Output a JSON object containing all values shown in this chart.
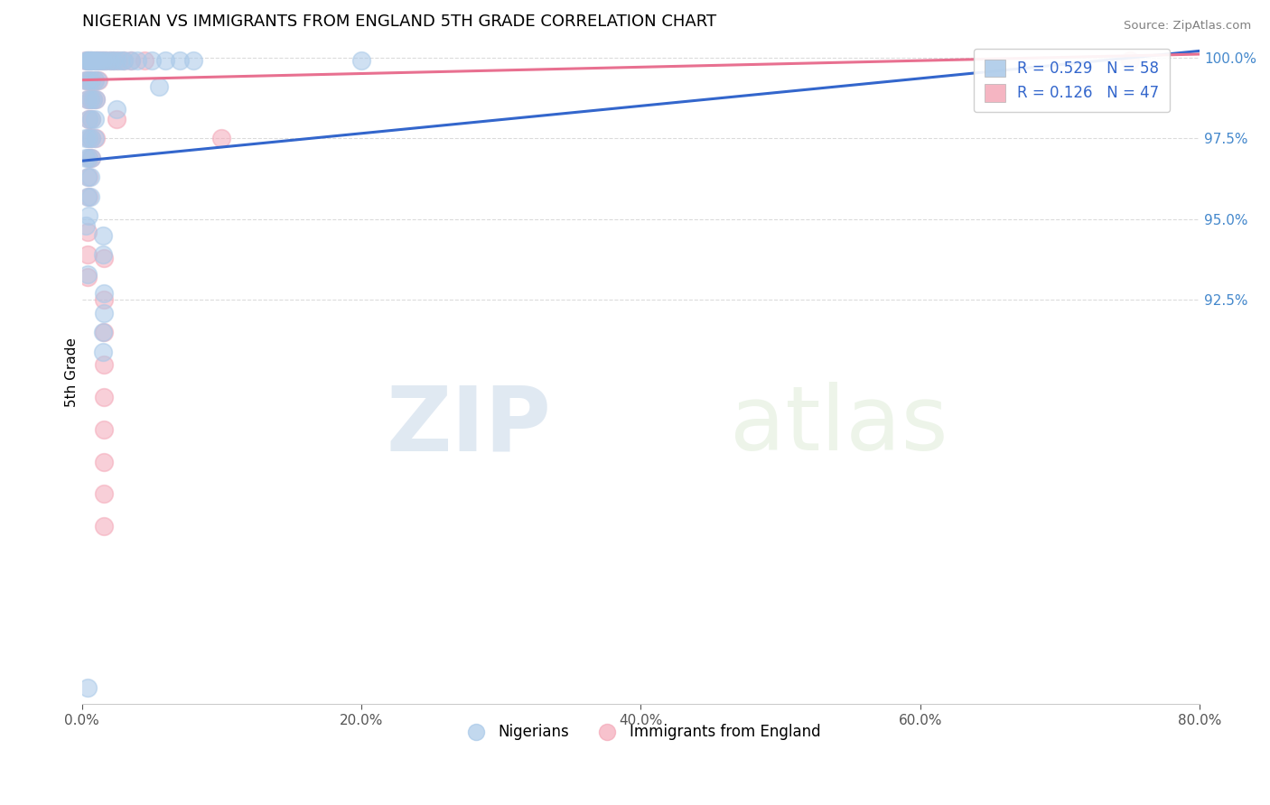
{
  "title": "NIGERIAN VS IMMIGRANTS FROM ENGLAND 5TH GRADE CORRELATION CHART",
  "source": "Source: ZipAtlas.com",
  "ylabel": "5th Grade",
  "xlim": [
    0.0,
    80.0
  ],
  "ylim": [
    80.0,
    100.5
  ],
  "xticks": [
    0.0,
    20.0,
    40.0,
    60.0,
    80.0
  ],
  "yticks": [
    92.5,
    95.0,
    97.5,
    100.0
  ],
  "title_fontsize": 13,
  "watermark_zip": "ZIP",
  "watermark_atlas": "atlas",
  "legend_r1": "R = 0.529   N = 58",
  "legend_r2": "R = 0.126   N = 47",
  "legend_label1": "Nigerians",
  "legend_label2": "Immigrants from England",
  "blue_color": "#a8c8e8",
  "pink_color": "#f4a8b8",
  "blue_line_color": "#3366cc",
  "pink_line_color": "#e87090",
  "blue_line_x": [
    0.0,
    80.0
  ],
  "blue_line_y": [
    96.8,
    100.2
  ],
  "pink_line_x": [
    0.0,
    80.0
  ],
  "pink_line_y": [
    99.3,
    100.1
  ],
  "blue_scatter": [
    [
      0.3,
      99.9
    ],
    [
      0.4,
      99.9
    ],
    [
      0.5,
      99.9
    ],
    [
      0.6,
      99.9
    ],
    [
      0.7,
      99.9
    ],
    [
      0.8,
      99.9
    ],
    [
      1.0,
      99.9
    ],
    [
      1.1,
      99.9
    ],
    [
      1.3,
      99.9
    ],
    [
      1.5,
      99.9
    ],
    [
      1.7,
      99.9
    ],
    [
      2.0,
      99.9
    ],
    [
      2.2,
      99.9
    ],
    [
      2.5,
      99.9
    ],
    [
      2.8,
      99.9
    ],
    [
      3.0,
      99.9
    ],
    [
      3.5,
      99.9
    ],
    [
      4.0,
      99.9
    ],
    [
      5.0,
      99.9
    ],
    [
      6.0,
      99.9
    ],
    [
      0.3,
      99.3
    ],
    [
      0.5,
      99.3
    ],
    [
      0.7,
      99.3
    ],
    [
      0.9,
      99.3
    ],
    [
      1.1,
      99.3
    ],
    [
      0.4,
      98.7
    ],
    [
      0.6,
      98.7
    ],
    [
      0.8,
      98.7
    ],
    [
      1.0,
      98.7
    ],
    [
      0.5,
      98.1
    ],
    [
      0.7,
      98.1
    ],
    [
      0.9,
      98.1
    ],
    [
      7.0,
      99.9
    ],
    [
      8.0,
      99.9
    ],
    [
      0.3,
      97.5
    ],
    [
      0.5,
      97.5
    ],
    [
      0.7,
      97.5
    ],
    [
      0.9,
      97.5
    ],
    [
      0.3,
      96.9
    ],
    [
      0.5,
      96.9
    ],
    [
      0.7,
      96.9
    ],
    [
      0.4,
      96.3
    ],
    [
      0.6,
      96.3
    ],
    [
      0.4,
      95.7
    ],
    [
      0.6,
      95.7
    ],
    [
      0.5,
      95.1
    ],
    [
      2.5,
      98.4
    ],
    [
      5.5,
      99.1
    ],
    [
      0.3,
      94.8
    ],
    [
      1.5,
      94.5
    ],
    [
      1.5,
      93.9
    ],
    [
      0.4,
      93.3
    ],
    [
      1.6,
      92.7
    ],
    [
      1.6,
      92.1
    ],
    [
      1.5,
      91.5
    ],
    [
      1.5,
      90.9
    ],
    [
      0.4,
      80.5
    ],
    [
      20.0,
      99.9
    ]
  ],
  "pink_scatter": [
    [
      0.3,
      99.9
    ],
    [
      0.5,
      99.9
    ],
    [
      0.7,
      99.9
    ],
    [
      0.9,
      99.9
    ],
    [
      1.1,
      99.9
    ],
    [
      1.3,
      99.9
    ],
    [
      1.5,
      99.9
    ],
    [
      1.7,
      99.9
    ],
    [
      2.0,
      99.9
    ],
    [
      2.3,
      99.9
    ],
    [
      2.6,
      99.9
    ],
    [
      3.0,
      99.9
    ],
    [
      3.5,
      99.9
    ],
    [
      4.5,
      99.9
    ],
    [
      0.3,
      99.3
    ],
    [
      0.5,
      99.3
    ],
    [
      0.7,
      99.3
    ],
    [
      0.9,
      99.3
    ],
    [
      1.2,
      99.3
    ],
    [
      0.4,
      98.7
    ],
    [
      0.6,
      98.7
    ],
    [
      0.8,
      98.7
    ],
    [
      1.0,
      98.7
    ],
    [
      0.5,
      98.1
    ],
    [
      0.7,
      98.1
    ],
    [
      0.5,
      97.5
    ],
    [
      0.7,
      97.5
    ],
    [
      1.0,
      97.5
    ],
    [
      0.5,
      96.9
    ],
    [
      0.7,
      96.9
    ],
    [
      0.5,
      96.3
    ],
    [
      0.5,
      95.7
    ],
    [
      2.5,
      98.1
    ],
    [
      0.4,
      94.6
    ],
    [
      0.4,
      93.9
    ],
    [
      75.0,
      99.9
    ],
    [
      10.0,
      97.5
    ],
    [
      0.4,
      93.2
    ],
    [
      1.6,
      93.8
    ],
    [
      1.6,
      92.5
    ],
    [
      1.6,
      91.5
    ],
    [
      1.6,
      90.5
    ],
    [
      1.6,
      89.5
    ],
    [
      1.6,
      88.5
    ],
    [
      1.6,
      87.5
    ],
    [
      1.6,
      86.5
    ],
    [
      1.6,
      85.5
    ]
  ]
}
